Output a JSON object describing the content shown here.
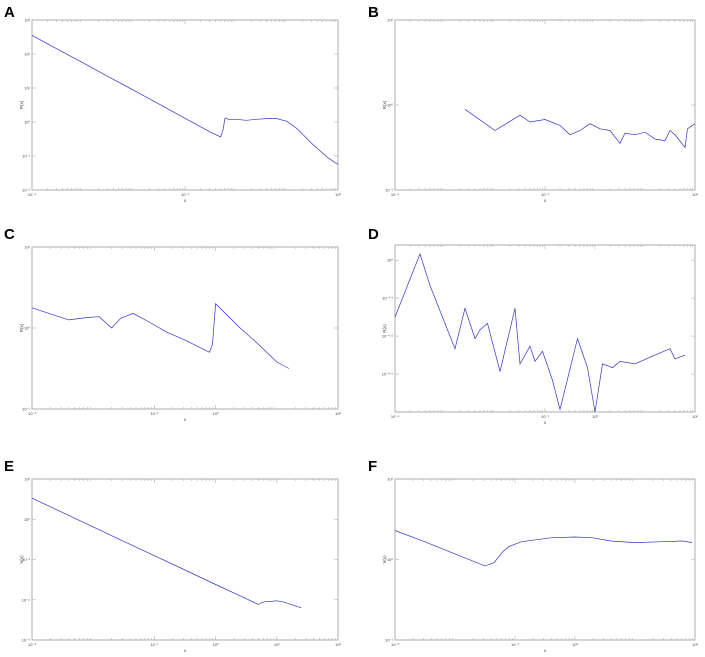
{
  "chart_data": [
    {
      "panel": "A",
      "type": "line",
      "xlabel": "x",
      "ylabel": "R(x)",
      "xscale": "log",
      "yscale": "log",
      "xlim": [
        -4,
        2
      ],
      "ylim": [
        -2,
        3
      ],
      "grid": false,
      "x_ticks": [
        {
          "e": -4,
          "label": "10⁻⁴"
        },
        {
          "e": -1,
          "label": "10⁻¹"
        },
        {
          "e": 2,
          "label": "10²"
        }
      ],
      "y_ticks": [
        {
          "e": 3,
          "label": "10³"
        },
        {
          "e": 2,
          "label": "10²"
        },
        {
          "e": 1,
          "label": "10¹"
        },
        {
          "e": 0,
          "label": "10⁰"
        },
        {
          "e": -1,
          "label": "10⁻¹"
        },
        {
          "e": -2,
          "label": "10⁻²"
        }
      ],
      "series": [
        {
          "color": "#3333cc",
          "x": [
            -4,
            -3.5,
            -3,
            -2.5,
            -2,
            -1.5,
            -1,
            -0.5,
            -0.3,
            -0.25,
            -0.22,
            -0.2,
            -0.15,
            0,
            0.2,
            0.4,
            0.6,
            0.8,
            1,
            1.2,
            1.5,
            1.8,
            2
          ],
          "y": [
            2.55,
            2.14,
            1.74,
            1.33,
            0.93,
            0.52,
            0.11,
            -0.3,
            -0.44,
            -0.2,
            0.1,
            0.12,
            0.08,
            0.08,
            0.05,
            0.08,
            0.1,
            0.1,
            0.02,
            -0.2,
            -0.65,
            -1.05,
            -1.25
          ]
        }
      ]
    },
    {
      "panel": "B",
      "type": "line",
      "xlabel": "x",
      "ylabel": "R(x)",
      "xscale": "log",
      "yscale": "log",
      "xlim": [
        -4,
        2
      ],
      "ylim": [
        -1,
        1
      ],
      "grid": false,
      "x_ticks": [
        {
          "e": -4,
          "label": "10⁻⁴"
        },
        {
          "e": -1,
          "label": "10⁻¹"
        },
        {
          "e": 2,
          "label": "10²"
        }
      ],
      "y_ticks": [
        {
          "e": 1,
          "label": "10¹"
        },
        {
          "e": 0,
          "label": "10⁰"
        },
        {
          "e": -1,
          "label": "10⁻¹"
        }
      ],
      "series": [
        {
          "color": "#3333cc",
          "x": [
            -2.6,
            -2.0,
            -1.5,
            -1.3,
            -1.0,
            -0.7,
            -0.5,
            -0.3,
            -0.1,
            0.1,
            0.3,
            0.5,
            0.6,
            0.8,
            1.0,
            1.2,
            1.4,
            1.5,
            1.6,
            1.8,
            1.85,
            2.0
          ],
          "y": [
            -0.05,
            -0.3,
            -0.12,
            -0.2,
            -0.17,
            -0.24,
            -0.35,
            -0.3,
            -0.22,
            -0.28,
            -0.3,
            -0.45,
            -0.33,
            -0.35,
            -0.32,
            -0.4,
            -0.42,
            -0.3,
            -0.35,
            -0.5,
            -0.28,
            -0.22
          ]
        }
      ]
    },
    {
      "panel": "C",
      "type": "line",
      "xlabel": "x",
      "ylabel": "R(x)",
      "xscale": "log",
      "yscale": "log",
      "xlim": [
        -3,
        2
      ],
      "ylim": [
        -1,
        1
      ],
      "grid": false,
      "x_ticks": [
        {
          "e": -3,
          "label": "10⁻³"
        },
        {
          "e": -1,
          "label": "10⁻¹"
        },
        {
          "e": 0,
          "label": "10⁰"
        },
        {
          "e": 2,
          "label": "10²"
        }
      ],
      "y_ticks": [
        {
          "e": 1,
          "label": "10¹"
        },
        {
          "e": 0,
          "label": "10⁰"
        },
        {
          "e": -1,
          "label": "10⁻¹"
        }
      ],
      "series": [
        {
          "color": "#3333cc",
          "x": [
            -3,
            -2.4,
            -2.1,
            -1.9,
            -1.7,
            -1.55,
            -1.35,
            -1.1,
            -0.8,
            -0.5,
            -0.1,
            -0.05,
            0.0,
            0.4,
            0.7,
            1.0,
            1.2
          ],
          "y": [
            0.25,
            0.1,
            0.13,
            0.14,
            0.0,
            0.12,
            0.18,
            0.08,
            -0.05,
            -0.15,
            -0.3,
            -0.2,
            0.3,
            0.0,
            -0.2,
            -0.42,
            -0.5
          ]
        }
      ]
    },
    {
      "panel": "D",
      "type": "line",
      "xlabel": "x",
      "ylabel": "R(x)",
      "xscale": "log",
      "yscale": "log",
      "xlim": [
        -4,
        2
      ],
      "ylim": [
        -1.2,
        0.12
      ],
      "grid": false,
      "x_ticks": [
        {
          "e": -4,
          "label": "10⁻⁴"
        },
        {
          "e": -1,
          "label": "10⁻¹"
        },
        {
          "e": 0,
          "label": "10⁰"
        },
        {
          "e": 2,
          "label": "10²"
        }
      ],
      "y_ticks": [
        {
          "e": 0,
          "label": "10⁰"
        },
        {
          "e": -0.3,
          "label": "10⁻⁰·³"
        },
        {
          "e": -0.6,
          "label": "10⁻⁰·⁶"
        },
        {
          "e": -0.9,
          "label": "10⁻⁰·⁹"
        }
      ],
      "series": [
        {
          "color": "#3333cc",
          "x": [
            -4,
            -3.5,
            -3.3,
            -2.8,
            -2.6,
            -2.4,
            -2.3,
            -2.15,
            -1.9,
            -1.6,
            -1.5,
            -1.3,
            -1.2,
            -1.05,
            -0.85,
            -0.7,
            -0.35,
            -0.15,
            0.0,
            0.15,
            0.35,
            0.5,
            0.8,
            1.2,
            1.5,
            1.6,
            1.8
          ],
          "y": [
            -0.45,
            0.05,
            -0.2,
            -0.7,
            -0.38,
            -0.62,
            -0.55,
            -0.5,
            -0.88,
            -0.38,
            -0.82,
            -0.68,
            -0.8,
            -0.72,
            -0.95,
            -1.18,
            -0.62,
            -0.85,
            -1.2,
            -0.82,
            -0.85,
            -0.8,
            -0.82,
            -0.75,
            -0.7,
            -0.78,
            -0.75
          ]
        }
      ]
    },
    {
      "panel": "E",
      "type": "line",
      "xlabel": "x",
      "ylabel": "V(x)",
      "xscale": "log",
      "yscale": "log",
      "xlim": [
        -3,
        2
      ],
      "ylim": [
        -6,
        2
      ],
      "grid": false,
      "x_ticks": [
        {
          "e": -3,
          "label": "10⁻³"
        },
        {
          "e": -1,
          "label": "10⁻¹"
        },
        {
          "e": 0,
          "label": "10⁰"
        },
        {
          "e": 1,
          "label": "10¹"
        },
        {
          "e": 2,
          "label": "10²"
        }
      ],
      "y_ticks": [
        {
          "e": 2,
          "label": "10²"
        },
        {
          "e": 0,
          "label": "10⁰"
        },
        {
          "e": -2,
          "label": "10⁻²"
        },
        {
          "e": -4,
          "label": "10⁻⁴"
        },
        {
          "e": -6,
          "label": "10⁻⁶"
        }
      ],
      "series": [
        {
          "color": "#3333cc",
          "x": [
            -3,
            -2.5,
            -2,
            -1.5,
            -1,
            -0.5,
            0,
            0.5,
            0.7,
            0.75,
            0.8,
            0.9,
            1.0,
            1.1,
            1.2,
            1.4
          ],
          "y": [
            1.05,
            0.33,
            -0.38,
            -1.1,
            -1.81,
            -2.52,
            -3.24,
            -3.95,
            -4.23,
            -4.15,
            -4.1,
            -4.08,
            -4.05,
            -4.1,
            -4.2,
            -4.4
          ]
        }
      ]
    },
    {
      "panel": "F",
      "type": "line",
      "xlabel": "x",
      "ylabel": "V(x)",
      "xscale": "log",
      "yscale": "log",
      "xlim": [
        -3,
        2
      ],
      "ylim": [
        -1,
        1
      ],
      "grid": false,
      "x_ticks": [
        {
          "e": -3,
          "label": "10⁻³"
        },
        {
          "e": -1,
          "label": "10⁻¹"
        },
        {
          "e": 0,
          "label": "10⁰"
        },
        {
          "e": 2,
          "label": "10²"
        }
      ],
      "y_ticks": [
        {
          "e": 1,
          "label": "10¹"
        },
        {
          "e": 0,
          "label": "10⁰"
        },
        {
          "e": -1,
          "label": "10⁻¹"
        }
      ],
      "series": [
        {
          "color": "#3333cc",
          "x": [
            -3,
            -2.5,
            -2,
            -1.5,
            -1.35,
            -1.2,
            -1.1,
            -0.9,
            -0.7,
            -0.4,
            0,
            0.3,
            0.6,
            1.0,
            1.4,
            1.8,
            1.95
          ],
          "y": [
            0.36,
            0.22,
            0.07,
            -0.08,
            -0.04,
            0.1,
            0.16,
            0.22,
            0.24,
            0.27,
            0.28,
            0.27,
            0.23,
            0.21,
            0.22,
            0.23,
            0.21
          ]
        }
      ]
    }
  ]
}
